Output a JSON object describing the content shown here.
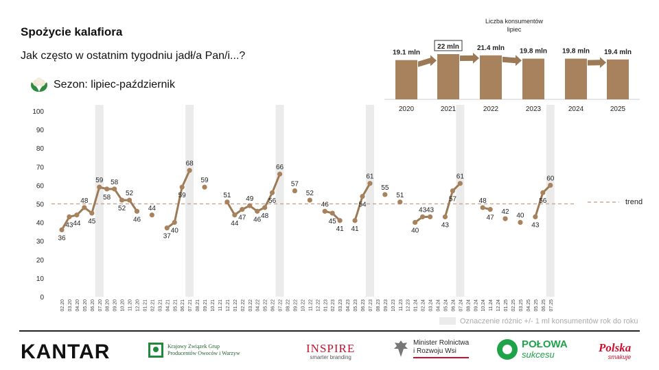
{
  "header": {
    "title": "Spożycie kalafiora",
    "subtitle": "Jak często w ostatnim tygodniu jadł/a Pan/i...?",
    "season_label": "Sezon: lipiec-październik"
  },
  "colors": {
    "series": "#a8825c",
    "series_line": "#9b7a55",
    "trend": "#c9aa95",
    "shade": "#ebebeb",
    "axis_text": "#222222",
    "mini_bar": "#a8825c",
    "mini_arrow": "#9b7a55"
  },
  "chart_data": [
    {
      "type": "line",
      "y_ticks": [
        "100",
        "90",
        "80",
        "70",
        "60",
        "50",
        "40",
        "30",
        "20",
        "10",
        "0"
      ],
      "ylim": [
        0,
        100
      ],
      "x": [
        "02.20",
        "03.20",
        "04.20",
        "05.20",
        "06.20",
        "07.20",
        "08.20",
        "09.20",
        "10.20",
        "11.20",
        "12.20",
        "01.21",
        "02.21",
        "03.21",
        "04.21",
        "05.21",
        "06.21",
        "07.21",
        "08.21",
        "09.21",
        "10.21",
        "11.21",
        "12.21",
        "01.22",
        "02.22",
        "03.22",
        "04.22",
        "05.22",
        "06.22",
        "07.22",
        "08.22",
        "09.22",
        "10.22",
        "11.22",
        "12.22",
        "01.23",
        "02.23",
        "03.23",
        "04.23",
        "05.23",
        "06.23",
        "07.23",
        "08.23",
        "09.23",
        "10.23",
        "11.23",
        "12.23",
        "01.24",
        "02.24",
        "03.24",
        "04.24",
        "05.24",
        "06.24",
        "07.24",
        "08.24",
        "09.24",
        "10.24",
        "11.24",
        "12.24",
        "01.25",
        "02.25",
        "03.25",
        "04.25",
        "05.25",
        "06.25",
        "07.25"
      ],
      "values": [
        36,
        43,
        44,
        48,
        45,
        59,
        58,
        58,
        52,
        52,
        46,
        null,
        44,
        null,
        37,
        40,
        59,
        68,
        null,
        59,
        null,
        null,
        51,
        44,
        47,
        49,
        46,
        48,
        56,
        66,
        null,
        57,
        null,
        52,
        null,
        46,
        45,
        41,
        null,
        41,
        54,
        61,
        null,
        55,
        null,
        51,
        null,
        40,
        43,
        43,
        null,
        43,
        57,
        61,
        null,
        null,
        48,
        47,
        null,
        42,
        null,
        40,
        null,
        43,
        56,
        60
      ],
      "highlighted_months": [
        "07.20",
        "07.21",
        "07.22",
        "07.23",
        "07.24",
        "07.25"
      ],
      "trend_value": 50,
      "legend": [
        "trend"
      ],
      "shade_note": "Oznaczenie różnic +/- 1 ml konsumentów rok do roku"
    },
    {
      "type": "bar",
      "title": "Liczba konsumentów lipiec",
      "categories": [
        "2020",
        "2021",
        "2022",
        "2023",
        "2024",
        "2025"
      ],
      "values": [
        19.1,
        22,
        21.4,
        19.8,
        19.8,
        19.4
      ],
      "value_labels": [
        "19.1 mln",
        "22 mln",
        "21.4 mln",
        "19.8 mln",
        "19.8 mln",
        "19.4 mln"
      ],
      "boxed_label_index": 1,
      "arrows_after": [
        0,
        1,
        2,
        4
      ]
    }
  ],
  "footer": {
    "kantar": "KANTAR",
    "kzgp": [
      "Krajowy Związek Grup",
      "Producentów Owoców i Warzyw"
    ],
    "inspire_main": "INSPIRE",
    "inspire_sub": "smarter branding",
    "ministry": [
      "Minister Rolnictwa",
      "i Rozwoju Wsi"
    ],
    "polowa_main": "POŁOWA",
    "polowa_sub": "sukcesu",
    "polska_main": "Polska",
    "polska_sub": "smakuje"
  }
}
